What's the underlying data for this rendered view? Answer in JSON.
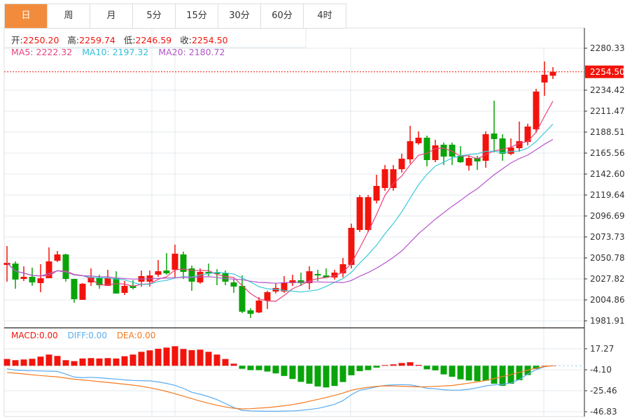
{
  "tabs": [
    {
      "label": "日",
      "active": true
    },
    {
      "label": "周"
    },
    {
      "label": "月"
    },
    {
      "label": "5分"
    },
    {
      "label": "15分"
    },
    {
      "label": "30分"
    },
    {
      "label": "60分"
    },
    {
      "label": "4时"
    }
  ],
  "info": {
    "open_label": "开:",
    "open": "2250.20",
    "high_label": "高:",
    "high": "2259.74",
    "low_label": "低:",
    "low": "2246.59",
    "close_label": "收:",
    "close": "2254.50",
    "ma5_label": "MA5:",
    "ma5": "2222.32",
    "ma10_label": "MA10:",
    "ma10": "2197.32",
    "ma20_label": "MA20:",
    "ma20": "2180.72"
  },
  "macd_info": {
    "macd": "MACD:0.00",
    "diff": "DIFF:0.00",
    "dea": "DEA:0.00"
  },
  "colors": {
    "up": "#f2140c",
    "down": "#09a409",
    "ma5": "#e9427e",
    "ma10": "#3cc8dc",
    "ma20": "#b455c8",
    "diff": "#5aacf0",
    "dea": "#f47a20",
    "accent": "#f28c3c"
  },
  "chart_data": [
    {
      "type": "candlestick",
      "ylim": [
        1981.91,
        2280.33
      ],
      "y_ticks": [
        "2280.33",
        "2234.42",
        "2211.47",
        "2188.51",
        "2165.56",
        "2142.60",
        "2119.64",
        "2096.69",
        "2073.73",
        "2050.78",
        "2027.82",
        "2004.86",
        "1981.91"
      ],
      "last_price": "2254.50",
      "ohlc": [
        [
          2043.1,
          2045.4,
          2063.8,
          2024.8
        ],
        [
          2044.6,
          2027.1,
          2047.0,
          2017.1
        ],
        [
          2027.8,
          2030.1,
          2041.6,
          2025.5
        ],
        [
          2030.1,
          2024.0,
          2040.1,
          2020.2
        ],
        [
          2023.2,
          2028.6,
          2043.9,
          2013.3
        ],
        [
          2028.6,
          2047.0,
          2062.3,
          2028.6
        ],
        [
          2047.7,
          2054.6,
          2058.4,
          2046.2
        ],
        [
          2054.6,
          2027.8,
          2055.4,
          2024.8
        ],
        [
          2027.8,
          2005.6,
          2027.8,
          2001.8
        ],
        [
          2004.9,
          2022.5,
          2023.2,
          2004.9
        ],
        [
          2024.0,
          2029.4,
          2039.3,
          2020.2
        ],
        [
          2029.4,
          2020.9,
          2032.4,
          2017.1
        ],
        [
          2020.2,
          2028.6,
          2037.8,
          2020.2
        ],
        [
          2028.6,
          2011.8,
          2036.2,
          2011.8
        ],
        [
          2012.5,
          2020.2,
          2025.5,
          2010.2
        ],
        [
          2020.2,
          2017.9,
          2026.3,
          2016.3
        ],
        [
          2024.8,
          2030.9,
          2037.0,
          2019.4
        ],
        [
          2024.8,
          2031.6,
          2037.0,
          2019.4
        ],
        [
          2032.4,
          2036.2,
          2048.5,
          2030.1
        ],
        [
          2037.0,
          2033.9,
          2056.1,
          2032.4
        ],
        [
          2037.8,
          2055.4,
          2065.3,
          2029.4
        ],
        [
          2054.6,
          2035.5,
          2057.7,
          2027.8
        ],
        [
          2039.3,
          2024.8,
          2042.4,
          2014.8
        ],
        [
          2024.0,
          2035.5,
          2039.3,
          2022.5
        ],
        [
          2035.5,
          2033.9,
          2044.6,
          2030.9
        ],
        [
          2034.7,
          2033.2,
          2038.5,
          2020.9
        ],
        [
          2033.9,
          2024.8,
          2037.0,
          2020.9
        ],
        [
          2024.0,
          2019.4,
          2027.8,
          2012.5
        ],
        [
          2020.2,
          1991.9,
          2031.6,
          1990.3
        ],
        [
          1993.4,
          1989.6,
          1995.7,
          1985.0
        ],
        [
          1991.1,
          2004.1,
          2007.9,
          1990.3
        ],
        [
          2004.1,
          2013.3,
          2014.8,
          1994.9
        ],
        [
          2014.0,
          2017.9,
          2023.2,
          2011.8
        ],
        [
          2014.0,
          2024.0,
          2030.9,
          2012.5
        ],
        [
          2023.2,
          2026.3,
          2032.4,
          2020.2
        ],
        [
          2026.3,
          2023.2,
          2034.7,
          2020.2
        ],
        [
          2023.2,
          2036.2,
          2041.6,
          2016.3
        ],
        [
          2033.2,
          2031.6,
          2037.8,
          2025.5
        ],
        [
          2031.6,
          2029.4,
          2039.3,
          2029.4
        ],
        [
          2029.4,
          2034.7,
          2037.8,
          2027.1
        ],
        [
          2033.9,
          2043.9,
          2050.8,
          2029.4
        ],
        [
          2043.1,
          2083.7,
          2088.3,
          2039.3
        ],
        [
          2081.4,
          2117.3,
          2119.6,
          2079.1
        ],
        [
          2081.4,
          2117.3,
          2119.6,
          2079.1
        ],
        [
          2113.5,
          2129.6,
          2141.8,
          2110.5
        ],
        [
          2127.3,
          2147.9,
          2152.5,
          2124.2
        ],
        [
          2127.3,
          2147.9,
          2152.5,
          2124.2
        ],
        [
          2147.9,
          2159.4,
          2164.8,
          2144.1
        ],
        [
          2158.7,
          2178.6,
          2195.4,
          2154.1
        ],
        [
          2176.3,
          2182.4,
          2189.3,
          2174.7
        ],
        [
          2182.4,
          2157.9,
          2184.7,
          2151.0
        ],
        [
          2157.9,
          2174.0,
          2180.1,
          2155.6
        ],
        [
          2174.7,
          2161.7,
          2177.0,
          2152.5
        ],
        [
          2174.7,
          2161.7,
          2177.0,
          2152.5
        ],
        [
          2162.5,
          2155.6,
          2173.2,
          2154.8
        ],
        [
          2151.8,
          2160.2,
          2162.5,
          2146.4
        ],
        [
          2160.2,
          2156.4,
          2162.5,
          2147.2
        ],
        [
          2157.1,
          2186.2,
          2189.3,
          2149.5
        ],
        [
          2187.0,
          2180.9,
          2222.9,
          2166.3
        ],
        [
          2181.6,
          2164.8,
          2186.2,
          2157.1
        ],
        [
          2164.8,
          2171.7,
          2181.6,
          2163.3
        ],
        [
          2170.9,
          2178.6,
          2200.0,
          2167.1
        ],
        [
          2177.8,
          2194.6,
          2197.7,
          2174.0
        ],
        [
          2191.6,
          2232.9,
          2235.9,
          2187.7
        ],
        [
          2242.8,
          2251.3,
          2265.8,
          2228.3
        ],
        [
          2250.2,
          2254.5,
          2259.74,
          2246.59
        ]
      ],
      "ma_periods": [
        5,
        10,
        20
      ]
    },
    {
      "type": "macd",
      "ylim": [
        -46.83,
        17.27
      ],
      "y_ticks": [
        "17.27",
        "-4.10",
        "-25.46",
        "-46.83"
      ],
      "hist": [
        6.9,
        5.7,
        6.4,
        7.1,
        9.3,
        11.4,
        10.0,
        5.7,
        4.7,
        7.4,
        7.8,
        7.4,
        7.8,
        7.4,
        9.7,
        11.4,
        14.2,
        15.7,
        17.3,
        18.5,
        19.9,
        17.1,
        15.9,
        16.4,
        14.2,
        11.4,
        6.9,
        2.1,
        -3.1,
        -4.5,
        -4.5,
        -5.9,
        -7.8,
        -10.4,
        -13.5,
        -16.4,
        -18.3,
        -21.1,
        -22.1,
        -20.6,
        -16.6,
        -9.7,
        -5.5,
        -4.5,
        -1.9,
        0.7,
        1.4,
        2.8,
        3.6,
        0.9,
        -3.6,
        -4.7,
        -8.8,
        -11.2,
        -13.8,
        -15.0,
        -15.7,
        -15.2,
        -18.3,
        -20.4,
        -18.3,
        -14.7,
        -9.5,
        -3.3,
        0,
        0
      ],
      "diff": [
        -3.2,
        -4.4,
        -4.8,
        -5.0,
        -5.3,
        -5.6,
        -5.8,
        -8.5,
        -11.5,
        -12.2,
        -11.8,
        -12.3,
        -13.0,
        -13.6,
        -14.4,
        -15.0,
        -15.2,
        -15.4,
        -16.5,
        -18.0,
        -20.0,
        -23.0,
        -27.0,
        -29.0,
        -31.5,
        -34.5,
        -38.5,
        -42.5,
        -45.5,
        -46.0,
        -46.2,
        -46.4,
        -46.4,
        -46.2,
        -46.0,
        -45.5,
        -44.5,
        -43.5,
        -41.5,
        -39.3,
        -35.5,
        -29.5,
        -25.0,
        -23.5,
        -21.5,
        -20.0,
        -19.5,
        -19.3,
        -19.5,
        -21.0,
        -23.0,
        -23.5,
        -24.5,
        -25.0,
        -24.8,
        -24.0,
        -22.5,
        -20.5,
        -19.5,
        -19.0,
        -17.5,
        -14.0,
        -8.5,
        -4.0,
        -1.0,
        0
      ],
      "dea": [
        -6.8,
        -7.6,
        -8.4,
        -9.2,
        -10.0,
        -10.7,
        -11.3,
        -12.6,
        -13.7,
        -14.5,
        -15.3,
        -16.2,
        -17.0,
        -17.9,
        -18.8,
        -19.8,
        -21.0,
        -22.5,
        -24.2,
        -26.2,
        -28.5,
        -31.0,
        -33.5,
        -36.0,
        -38.2,
        -40.3,
        -42.0,
        -43.3,
        -44.0,
        -43.8,
        -43.2,
        -42.6,
        -41.8,
        -40.8,
        -39.6,
        -38.0,
        -36.2,
        -34.3,
        -32.3,
        -30.2,
        -27.8,
        -25.0,
        -23.2,
        -22.0,
        -21.0,
        -20.5,
        -20.6,
        -20.9,
        -21.2,
        -21.5,
        -21.4,
        -21.0,
        -20.6,
        -20.1,
        -19.0,
        -17.8,
        -16.5,
        -15.0,
        -13.0,
        -11.0,
        -9.0,
        -6.8,
        -4.5,
        -2.5,
        -0.8,
        0
      ]
    }
  ]
}
